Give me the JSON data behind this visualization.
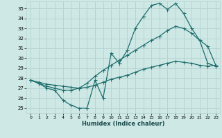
{
  "xlabel": "Humidex (Indice chaleur)",
  "bg_color": "#cde8e5",
  "grid_color": "#b8d4d2",
  "line_color": "#1e6e6e",
  "xlim": [
    -0.5,
    23.5
  ],
  "ylim": [
    24.5,
    35.7
  ],
  "yticks": [
    25,
    26,
    27,
    28,
    29,
    30,
    31,
    32,
    33,
    34,
    35
  ],
  "xticks": [
    0,
    1,
    2,
    3,
    4,
    5,
    6,
    7,
    8,
    9,
    10,
    11,
    12,
    13,
    14,
    15,
    16,
    17,
    18,
    19,
    20,
    21,
    22,
    23
  ],
  "line1_x": [
    0,
    1,
    2,
    3,
    4,
    5,
    6,
    7,
    8,
    9,
    10,
    11,
    12,
    13,
    14,
    15,
    16,
    17,
    18,
    19,
    20,
    21,
    22,
    23
  ],
  "line1_y": [
    27.8,
    27.5,
    27.0,
    26.8,
    25.8,
    25.3,
    25.0,
    25.0,
    27.8,
    26.0,
    30.5,
    29.5,
    30.8,
    33.0,
    34.2,
    35.3,
    35.5,
    34.9,
    35.5,
    34.5,
    33.0,
    31.8,
    29.5,
    29.2
  ],
  "line2_x": [
    0,
    1,
    2,
    3,
    4,
    5,
    6,
    7,
    8,
    9,
    10,
    11,
    12,
    13,
    14,
    15,
    16,
    17,
    18,
    19,
    20,
    21,
    22,
    23
  ],
  "line2_y": [
    27.8,
    27.5,
    27.2,
    27.0,
    26.8,
    26.8,
    27.0,
    27.5,
    28.2,
    28.8,
    29.3,
    29.8,
    30.3,
    30.8,
    31.3,
    31.8,
    32.2,
    32.8,
    33.2,
    33.0,
    32.5,
    31.8,
    31.2,
    29.3
  ],
  "line3_x": [
    0,
    1,
    2,
    3,
    4,
    5,
    6,
    7,
    8,
    9,
    10,
    11,
    12,
    13,
    14,
    15,
    16,
    17,
    18,
    19,
    20,
    21,
    22,
    23
  ],
  "line3_y": [
    27.8,
    27.6,
    27.4,
    27.3,
    27.2,
    27.1,
    27.0,
    27.1,
    27.3,
    27.6,
    27.9,
    28.1,
    28.3,
    28.6,
    28.9,
    29.1,
    29.3,
    29.5,
    29.7,
    29.6,
    29.5,
    29.3,
    29.2,
    29.3
  ]
}
